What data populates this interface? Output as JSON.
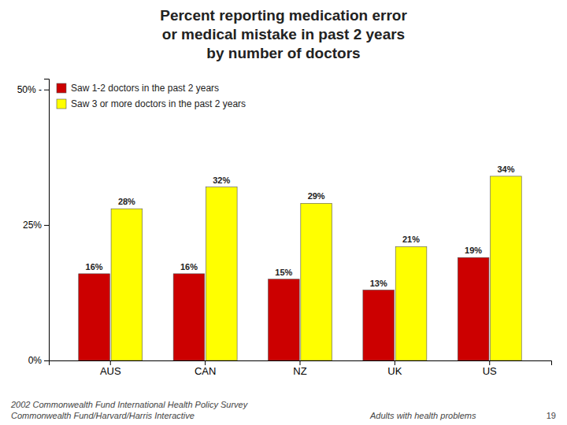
{
  "chart_data": {
    "type": "bar",
    "title": [
      "Percent reporting medication error",
      "or medical mistake in past 2 years",
      "by number of doctors"
    ],
    "categories": [
      "AUS",
      "CAN",
      "NZ",
      "UK",
      "US"
    ],
    "series": [
      {
        "name": "Saw 1-2 doctors in the past 2 years",
        "color": "#cc0000",
        "values": [
          16,
          16,
          15,
          13,
          19
        ],
        "value_labels": [
          "16%",
          "16%",
          "15%",
          "13%",
          "19%"
        ]
      },
      {
        "name": "Saw 3 or more doctors in the past 2 years",
        "color": "#ffff00",
        "values": [
          28,
          32,
          29,
          21,
          34
        ],
        "value_labels": [
          "28%",
          "32%",
          "29%",
          "21%",
          "34%"
        ]
      }
    ],
    "ylim": [
      0,
      52
    ],
    "yticks": [
      {
        "value": 0,
        "label": "0%"
      },
      {
        "value": 25,
        "label": "25%"
      },
      {
        "value": 50,
        "label": "50% -"
      }
    ],
    "grid": false,
    "legend": "upper left",
    "data_labels": true,
    "annotations": [
      "2002 Commonwealth Fund International Health Policy Survey",
      "Commonwealth Fund/Harvard/Harris Interactive",
      "Adults with health problems",
      "19"
    ]
  }
}
